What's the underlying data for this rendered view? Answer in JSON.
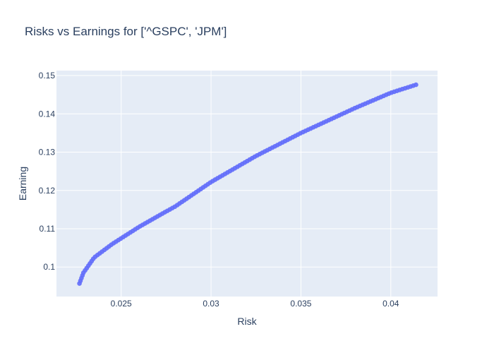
{
  "chart_data": {
    "type": "scatter",
    "title": "Risks vs Earnings for ['^GSPC', 'JPM']",
    "xlabel": "Risk",
    "ylabel": "Earning",
    "xlim": [
      0.0214,
      0.0426
    ],
    "ylim": [
      0.0923,
      0.1513
    ],
    "grid": true,
    "legend": "none",
    "x_ticks": [
      0.025,
      0.03,
      0.035,
      0.04
    ],
    "x_tick_labels": [
      "0.025",
      "0.03",
      "0.035",
      "0.04"
    ],
    "y_ticks": [
      0.1,
      0.11,
      0.12,
      0.13,
      0.14,
      0.15
    ],
    "y_tick_labels": [
      "0.1",
      "0.11",
      "0.12",
      "0.13",
      "0.14",
      "0.15"
    ],
    "marker_color": "#636efa",
    "plot_bg": "#e5ecf6",
    "grid_color": "#ffffff",
    "curve_anchors": [
      {
        "x": 0.02268,
        "y": 0.0957
      },
      {
        "x": 0.0229,
        "y": 0.0985
      },
      {
        "x": 0.0235,
        "y": 0.1025
      },
      {
        "x": 0.0245,
        "y": 0.106
      },
      {
        "x": 0.025,
        "y": 0.1075
      },
      {
        "x": 0.026,
        "y": 0.1105
      },
      {
        "x": 0.0275,
        "y": 0.1145
      },
      {
        "x": 0.028,
        "y": 0.1158
      },
      {
        "x": 0.03,
        "y": 0.1222
      },
      {
        "x": 0.0325,
        "y": 0.129
      },
      {
        "x": 0.035,
        "y": 0.135
      },
      {
        "x": 0.038,
        "y": 0.1415
      },
      {
        "x": 0.04,
        "y": 0.1455
      },
      {
        "x": 0.0414,
        "y": 0.1476
      }
    ],
    "point_count": 140
  }
}
